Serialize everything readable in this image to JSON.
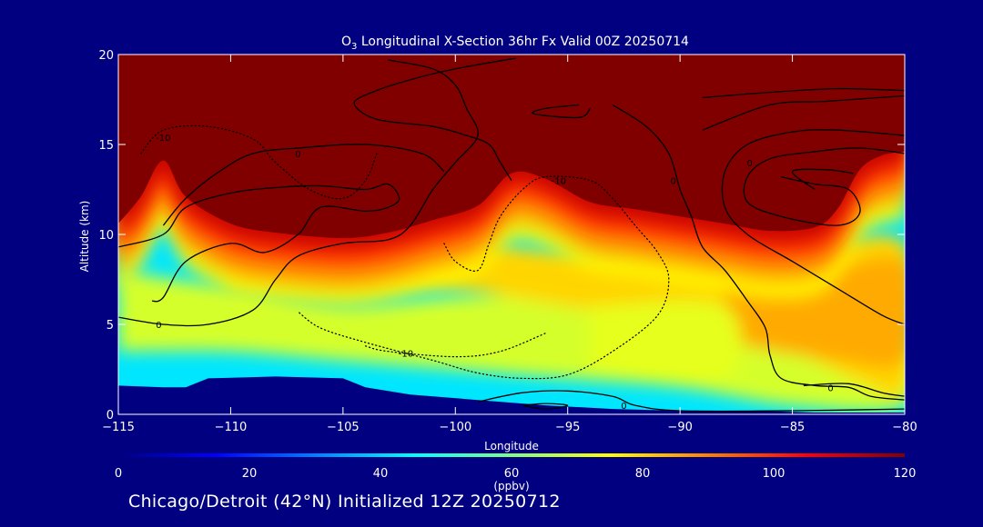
{
  "chart_data": {
    "type": "heatmap",
    "title_prefix": "O",
    "title_sub": "3",
    "title_rest": " Longitudinal X-Section 36hr  Fx Valid 00Z 20250714",
    "xlabel": "Longitude",
    "ylabel": "Altitude (km)",
    "xlim": [
      -115,
      -80
    ],
    "ylim": [
      0,
      20
    ],
    "x_ticks": [
      -115,
      -110,
      -105,
      -100,
      -95,
      -90,
      -85,
      -80
    ],
    "x_tick_labels": [
      "−115",
      "−110",
      "−105",
      "−100",
      "−95",
      "−90",
      "−85",
      "−80"
    ],
    "y_ticks": [
      0,
      5,
      10,
      15,
      20
    ],
    "y_tick_labels": [
      "0",
      "5",
      "10",
      "15",
      "20"
    ],
    "colorbar": {
      "min": 0,
      "max": 120,
      "ticks": [
        0,
        20,
        40,
        60,
        80,
        100,
        120
      ],
      "tick_labels": [
        "0",
        "20",
        "40",
        "60",
        "80",
        "100",
        "120"
      ],
      "units": "(ppbv)",
      "colors": [
        "#000080",
        "#0000ff",
        "#0080ff",
        "#00ffff",
        "#80ff80",
        "#ffff00",
        "#ff8000",
        "#ff0000",
        "#800000"
      ]
    },
    "terrain": [
      [
        -115,
        1.6
      ],
      [
        -113,
        1.5
      ],
      [
        -112,
        1.5
      ],
      [
        -111,
        2.0
      ],
      [
        -108,
        2.1
      ],
      [
        -105,
        2.0
      ],
      [
        -104,
        1.5
      ],
      [
        -102,
        1.1
      ],
      [
        -99,
        0.8
      ],
      [
        -96,
        0.5
      ],
      [
        -93,
        0.3
      ],
      [
        -90,
        0.2
      ],
      [
        -87,
        0.2
      ],
      [
        -84,
        0.1
      ],
      [
        -80,
        0.1
      ]
    ],
    "tropopause": [
      [
        -115,
        10.0
      ],
      [
        -114,
        11.5
      ],
      [
        -113,
        13.5
      ],
      [
        -112,
        11.5
      ],
      [
        -110,
        10.0
      ],
      [
        -108,
        9.5
      ],
      [
        -105,
        9.2
      ],
      [
        -103,
        9.5
      ],
      [
        -101,
        10.2
      ],
      [
        -99,
        11.0
      ],
      [
        -97.5,
        12.8
      ],
      [
        -96,
        12.5
      ],
      [
        -94,
        11.2
      ],
      [
        -92,
        10.8
      ],
      [
        -90,
        10.4
      ],
      [
        -88,
        10.0
      ],
      [
        -86,
        9.6
      ],
      [
        -84,
        9.8
      ],
      [
        -83,
        10.8
      ],
      [
        -82,
        13.0
      ],
      [
        -81,
        13.8
      ],
      [
        -80,
        14.0
      ]
    ],
    "regions": [
      {
        "level": 70,
        "points": [
          [
            -115,
            8.0
          ],
          [
            -110,
            7.0
          ],
          [
            -105,
            6.0
          ],
          [
            -100,
            6.5
          ],
          [
            -95,
            6.5
          ],
          [
            -90,
            5.5
          ],
          [
            -85,
            5.0
          ],
          [
            -80,
            4.2
          ],
          [
            -80,
            0.5
          ],
          [
            -85,
            0.5
          ],
          [
            -90,
            1.5
          ],
          [
            -95,
            2.0
          ],
          [
            -100,
            2.5
          ],
          [
            -105,
            3.0
          ],
          [
            -110,
            3.5
          ],
          [
            -115,
            3.5
          ]
        ]
      },
      {
        "level": 80,
        "points": [
          [
            -110,
            9.0
          ],
          [
            -106,
            8.5
          ],
          [
            -100,
            9.5
          ],
          [
            -95,
            9.0
          ],
          [
            -90,
            9.0
          ],
          [
            -85,
            9.0
          ],
          [
            -80,
            9.5
          ],
          [
            -80,
            1.5
          ],
          [
            -82,
            1.8
          ],
          [
            -85,
            3.5
          ],
          [
            -88,
            4.0
          ],
          [
            -90,
            5.0
          ],
          [
            -95,
            6.0
          ],
          [
            -100,
            7.0
          ],
          [
            -105,
            7.5
          ],
          [
            -110,
            7.5
          ]
        ]
      },
      {
        "level": 85,
        "points": [
          [
            -88,
            8.5
          ],
          [
            -84,
            8.0
          ],
          [
            -80,
            8.5
          ],
          [
            -80,
            3.0
          ],
          [
            -83,
            3.0
          ],
          [
            -88,
            4.0
          ]
        ]
      },
      {
        "level": 72,
        "points": [
          [
            -94,
            6.0
          ],
          [
            -88,
            6.0
          ],
          [
            -88,
            2.0
          ],
          [
            -94,
            2.5
          ]
        ]
      }
    ],
    "contours": [
      {
        "label": "0",
        "style": "solid",
        "label_at": [
          -113.2,
          5.0
        ],
        "points": [
          [
            -115,
            5.4
          ],
          [
            -113,
            5.0
          ],
          [
            -111,
            5.0
          ],
          [
            -109,
            5.8
          ],
          [
            -108,
            7.5
          ],
          [
            -107,
            8.8
          ],
          [
            -105,
            9.5
          ],
          [
            -103,
            9.7
          ],
          [
            -102,
            10.5
          ],
          [
            -101,
            12.5
          ],
          [
            -100,
            14.0
          ],
          [
            -99,
            15.5
          ],
          [
            -99.5,
            17.0
          ],
          [
            -100,
            18.3
          ],
          [
            -101,
            19.2
          ],
          [
            -103,
            19.7
          ]
        ]
      },
      {
        "label": "",
        "style": "solid",
        "label_at": null,
        "points": [
          [
            -115,
            9.3
          ],
          [
            -113,
            10.0
          ],
          [
            -112,
            11.5
          ],
          [
            -110,
            12.3
          ],
          [
            -108,
            12.6
          ],
          [
            -106,
            12.7
          ],
          [
            -104,
            12.5
          ],
          [
            -103,
            12.8
          ],
          [
            -102.5,
            12.0
          ],
          [
            -103,
            11.5
          ],
          [
            -104,
            11.3
          ],
          [
            -106,
            11.5
          ],
          [
            -107,
            10.0
          ],
          [
            -108.5,
            9.0
          ],
          [
            -110,
            9.5
          ],
          [
            -112,
            8.5
          ],
          [
            -113,
            6.5
          ],
          [
            -113.5,
            6.3
          ]
        ]
      },
      {
        "label": "0",
        "style": "solid",
        "label_at": [
          -107,
          14.5
        ],
        "points": [
          [
            -113,
            10.5
          ],
          [
            -112,
            12.0
          ],
          [
            -110.5,
            13.5
          ],
          [
            -109,
            14.5
          ],
          [
            -107,
            14.8
          ],
          [
            -104,
            15.0
          ],
          [
            -101.5,
            14.5
          ],
          [
            -100.5,
            13.5
          ]
        ]
      },
      {
        "label": "0",
        "style": "solid",
        "label_at": [
          -90.3,
          13.0
        ],
        "points": [
          [
            -93,
            17.2
          ],
          [
            -91.5,
            16.0
          ],
          [
            -90.5,
            14.5
          ],
          [
            -90,
            12.5
          ],
          [
            -89.5,
            11.0
          ],
          [
            -89,
            9.3
          ],
          [
            -88,
            8.0
          ],
          [
            -87,
            6.3
          ],
          [
            -86.2,
            4.8
          ],
          [
            -86,
            3.3
          ],
          [
            -85.5,
            2.0
          ],
          [
            -84,
            1.6
          ],
          [
            -82.5,
            1.5
          ],
          [
            -81.5,
            1.0
          ],
          [
            -80,
            0.8
          ]
        ]
      },
      {
        "label": "",
        "style": "solid",
        "label_at": null,
        "points": [
          [
            -94.5,
            17.2
          ],
          [
            -96,
            17.0
          ],
          [
            -96.5,
            16.7
          ],
          [
            -94.5,
            16.5
          ],
          [
            -94,
            17.0
          ]
        ]
      },
      {
        "label": "",
        "style": "solid",
        "label_at": null,
        "points": [
          [
            -80,
            15.5
          ],
          [
            -83,
            15.8
          ],
          [
            -85,
            15.7
          ],
          [
            -87,
            15.0
          ],
          [
            -88,
            13.5
          ],
          [
            -88,
            11.5
          ],
          [
            -87,
            10.0
          ],
          [
            -85,
            8.5
          ],
          [
            -83,
            7.0
          ],
          [
            -81,
            5.5
          ],
          [
            -80,
            5.0
          ]
        ]
      },
      {
        "label": "0",
        "style": "solid",
        "label_at": [
          -86.9,
          14.0
        ],
        "points": [
          [
            -80,
            14.5
          ],
          [
            -82,
            14.8
          ],
          [
            -84,
            14.6
          ],
          [
            -86,
            14.2
          ],
          [
            -87,
            13.2
          ],
          [
            -87,
            11.8
          ],
          [
            -85.5,
            11.0
          ],
          [
            -83,
            10.5
          ],
          [
            -82,
            11.2
          ],
          [
            -82.5,
            12.5
          ],
          [
            -84,
            12.8
          ],
          [
            -85.5,
            13.2
          ]
        ]
      },
      {
        "label": "",
        "style": "solid",
        "label_at": null,
        "points": [
          [
            -84,
            12.5
          ],
          [
            -85,
            13.5
          ],
          [
            -83.5,
            13.6
          ],
          [
            -82.3,
            13.4
          ]
        ]
      },
      {
        "label": "",
        "style": "solid",
        "label_at": null,
        "points": [
          [
            -97.3,
            19.8
          ],
          [
            -100,
            19.2
          ],
          [
            -102,
            18.6
          ],
          [
            -103.5,
            18.0
          ],
          [
            -104.5,
            17.3
          ],
          [
            -103.5,
            16.4
          ],
          [
            -101,
            16.0
          ],
          [
            -99.5,
            15.5
          ],
          [
            -98.5,
            15.0
          ],
          [
            -98,
            14.0
          ],
          [
            -97.5,
            13.0
          ]
        ]
      },
      {
        "label": "",
        "style": "solid",
        "label_at": null,
        "points": [
          [
            -89,
            17.6
          ],
          [
            -86,
            17.9
          ],
          [
            -83,
            18.1
          ],
          [
            -80,
            18.0
          ]
        ]
      },
      {
        "label": "",
        "style": "solid",
        "label_at": null,
        "points": [
          [
            -89,
            15.8
          ],
          [
            -86,
            17.2
          ],
          [
            -83.5,
            17.4
          ],
          [
            -80,
            17.7
          ]
        ]
      },
      {
        "label": "0",
        "style": "solid",
        "label_at": [
          -92.5,
          0.5
        ],
        "points": [
          [
            -99,
            0.7
          ],
          [
            -97,
            1.2
          ],
          [
            -95,
            1.3
          ],
          [
            -93,
            1.0
          ],
          [
            -92,
            0.5
          ],
          [
            -90,
            0.2
          ],
          [
            -85,
            0.2
          ],
          [
            -80,
            0.3
          ]
        ]
      },
      {
        "label": "0",
        "style": "solid",
        "label_at": [
          -83.3,
          1.5
        ],
        "points": [
          [
            -84.5,
            1.6
          ],
          [
            -82.5,
            1.7
          ],
          [
            -81,
            1.2
          ],
          [
            -80,
            1.0
          ]
        ]
      },
      {
        "label": "",
        "style": "solid",
        "label_at": null,
        "points": [
          [
            -97,
            0.5
          ],
          [
            -96,
            0.6
          ],
          [
            -95,
            0.5
          ],
          [
            -96,
            0.3
          ],
          [
            -97,
            0.5
          ]
        ]
      },
      {
        "label": "-10",
        "style": "dotted",
        "label_at": [
          -113,
          15.4
        ],
        "points": [
          [
            -114,
            14.5
          ],
          [
            -113,
            15.8
          ],
          [
            -111,
            16.0
          ],
          [
            -109,
            15.3
          ],
          [
            -108,
            14.0
          ],
          [
            -106.5,
            12.5
          ],
          [
            -105,
            12.0
          ],
          [
            -104,
            13.0
          ],
          [
            -103.5,
            14.5
          ]
        ]
      },
      {
        "label": "-10",
        "style": "dotted",
        "label_at": [
          -95.4,
          13.0
        ],
        "points": [
          [
            -100.5,
            9.5
          ],
          [
            -100,
            8.5
          ],
          [
            -99,
            8.0
          ],
          [
            -98.5,
            9.5
          ],
          [
            -98,
            11.0
          ],
          [
            -97,
            12.5
          ],
          [
            -96,
            13.2
          ],
          [
            -94,
            13.0
          ],
          [
            -93,
            12.0
          ],
          [
            -92,
            10.5
          ],
          [
            -91,
            9.0
          ],
          [
            -90.5,
            7.5
          ],
          [
            -91,
            5.5
          ],
          [
            -93,
            3.5
          ],
          [
            -95,
            2.2
          ],
          [
            -97,
            2.0
          ],
          [
            -99,
            2.3
          ],
          [
            -101,
            3.0
          ],
          [
            -104,
            4.0
          ],
          [
            -106,
            4.8
          ],
          [
            -107,
            5.7
          ]
        ]
      },
      {
        "label": "-10",
        "style": "dotted",
        "label_at": [
          -102.2,
          3.4
        ],
        "points": [
          [
            -104,
            3.8
          ],
          [
            -103,
            3.5
          ],
          [
            -100,
            3.2
          ],
          [
            -98,
            3.5
          ],
          [
            -96,
            4.5
          ]
        ]
      }
    ],
    "footer": "Chicago/Detroit (42°N) Initialized 12Z 20250712"
  }
}
